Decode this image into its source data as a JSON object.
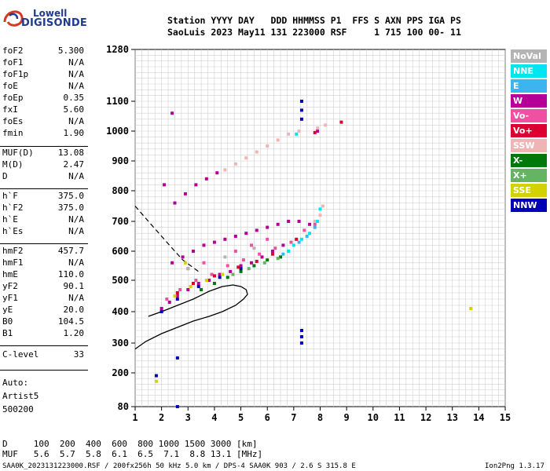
{
  "logo": {
    "line1": "Lowell",
    "line2": "DIGISONDE"
  },
  "header": {
    "line1": "Station YYYY DAY   DDD HHMMSS P1  FFS S AXN PPS IGA PS",
    "line2": "SaoLuis 2023 May11 131 223000 RSF     1 715 100 00- 11"
  },
  "params": [
    {
      "name": "foF2",
      "value": "5.300"
    },
    {
      "name": "foF1",
      "value": "N/A"
    },
    {
      "name": "foF1p",
      "value": "N/A"
    },
    {
      "name": "foE",
      "value": "N/A"
    },
    {
      "name": "foEp",
      "value": "0.35"
    },
    {
      "name": "fxI",
      "value": "5.60"
    },
    {
      "name": "foEs",
      "value": "N/A"
    },
    {
      "name": "fmin",
      "value": "1.90"
    },
    {
      "name": "MUF(D)",
      "value": "13.08"
    },
    {
      "name": "M(D)",
      "value": "2.47"
    },
    {
      "name": "D",
      "value": "N/A"
    },
    {
      "name": "h`F",
      "value": "375.0"
    },
    {
      "name": "h`F2",
      "value": "375.0"
    },
    {
      "name": "h`E",
      "value": "N/A"
    },
    {
      "name": "h`Es",
      "value": "N/A"
    },
    {
      "name": "hmF2",
      "value": "457.7"
    },
    {
      "name": "hmF1",
      "value": "N/A"
    },
    {
      "name": "hmE",
      "value": "110.0"
    },
    {
      "name": "yF2",
      "value": "90.1"
    },
    {
      "name": "yF1",
      "value": "N/A"
    },
    {
      "name": "yE",
      "value": "20.0"
    },
    {
      "name": "B0",
      "value": "104.5"
    },
    {
      "name": "B1",
      "value": "1.20"
    },
    {
      "name": "C-level",
      "value": "33"
    }
  ],
  "auto": {
    "line1": "Auto:",
    "line2": "Artist5",
    "line3": "500200"
  },
  "legend": [
    {
      "label": "NoVal",
      "color": "#b4b4b4",
      "text_color": "#ffffff"
    },
    {
      "label": "NNE",
      "color": "#00e6f0",
      "text_color": "#ffffff"
    },
    {
      "label": "E",
      "color": "#3cb4f0",
      "text_color": "#ffffff"
    },
    {
      "label": "W",
      "color": "#b40096",
      "text_color": "#ffffff"
    },
    {
      "label": "Vo-",
      "color": "#f050a0",
      "text_color": "#ffffff"
    },
    {
      "label": "Vo+",
      "color": "#dc0032",
      "text_color": "#ffffff"
    },
    {
      "label": "SSW",
      "color": "#f0b4b4",
      "text_color": "#ffffff"
    },
    {
      "label": "X-",
      "color": "#00780a",
      "text_color": "#ffffff"
    },
    {
      "label": "X+",
      "color": "#64b464",
      "text_color": "#ffffff"
    },
    {
      "label": "SSE",
      "color": "#d2d200",
      "text_color": "#ffffff"
    },
    {
      "label": "NNW",
      "color": "#0000b4",
      "text_color": "#ffffff"
    }
  ],
  "footer": {
    "d_row": "D     100  200  400  600  800 1000 1500 3000 [km]",
    "muf_row": "MUF   5.6  5.7  5.8  6.1  6.5  7.1  8.8 13.1 [MHz]",
    "file_line": "SAA0K_2023131223000.RSF / 200fx256h 50 kHz 5.0 km / DPS-4 SAA0K 903 / 2.6 S 315.8 E",
    "version": "Ion2Png 1.3.17"
  },
  "chart_data": {
    "type": "scatter",
    "xlim": [
      1,
      15
    ],
    "ylim": [
      80,
      1280
    ],
    "x_ticks": [
      1,
      2,
      3,
      4,
      5,
      6,
      7,
      8,
      9,
      10,
      11,
      12,
      13,
      14,
      15
    ],
    "y_ticks": [
      80,
      200,
      300,
      400,
      500,
      600,
      700,
      800,
      900,
      1000,
      1100,
      1280
    ],
    "grid": true,
    "legend_position": "right",
    "series": [
      {
        "name": "W",
        "color": "#b40096",
        "points": [
          [
            2.0,
            410
          ],
          [
            2.3,
            430
          ],
          [
            2.6,
            450
          ],
          [
            3.0,
            470
          ],
          [
            3.4,
            490
          ],
          [
            3.8,
            500
          ],
          [
            4.2,
            520
          ],
          [
            4.6,
            530
          ],
          [
            5.0,
            550
          ],
          [
            5.4,
            560
          ],
          [
            5.8,
            580
          ],
          [
            6.2,
            600
          ],
          [
            6.6,
            620
          ],
          [
            2.4,
            560
          ],
          [
            2.8,
            580
          ],
          [
            3.2,
            600
          ],
          [
            3.6,
            620
          ],
          [
            4.0,
            630
          ],
          [
            4.4,
            640
          ],
          [
            4.8,
            650
          ],
          [
            5.2,
            660
          ],
          [
            5.6,
            670
          ],
          [
            6.0,
            680
          ],
          [
            6.4,
            690
          ],
          [
            6.8,
            700
          ],
          [
            7.2,
            700
          ],
          [
            7.6,
            690
          ],
          [
            2.5,
            760
          ],
          [
            2.9,
            790
          ],
          [
            3.3,
            820
          ],
          [
            3.7,
            840
          ],
          [
            4.1,
            860
          ],
          [
            7.9,
            1000
          ],
          [
            2.4,
            1060
          ],
          [
            2.1,
            820
          ]
        ]
      },
      {
        "name": "Vo-",
        "color": "#f050a0",
        "points": [
          [
            2.2,
            440
          ],
          [
            2.7,
            470
          ],
          [
            3.3,
            500
          ],
          [
            3.9,
            520
          ],
          [
            4.5,
            550
          ],
          [
            5.1,
            570
          ],
          [
            5.7,
            590
          ],
          [
            6.3,
            610
          ],
          [
            6.9,
            630
          ],
          [
            7.4,
            670
          ],
          [
            7.8,
            690
          ],
          [
            3.0,
            540
          ],
          [
            3.6,
            560
          ],
          [
            4.8,
            600
          ],
          [
            5.4,
            620
          ],
          [
            6.0,
            640
          ]
        ]
      },
      {
        "name": "SSW",
        "color": "#f0b4b4",
        "points": [
          [
            4.4,
            870
          ],
          [
            4.8,
            890
          ],
          [
            5.2,
            910
          ],
          [
            5.6,
            930
          ],
          [
            6.0,
            950
          ],
          [
            6.4,
            970
          ],
          [
            6.8,
            990
          ],
          [
            7.2,
            1000
          ],
          [
            7.9,
            1010
          ],
          [
            8.2,
            1020
          ],
          [
            7.8,
            700
          ],
          [
            8.0,
            720
          ],
          [
            8.1,
            750
          ]
        ]
      },
      {
        "name": "NNE",
        "color": "#00e6f0",
        "points": [
          [
            7.0,
            620
          ],
          [
            7.3,
            640
          ],
          [
            7.6,
            660
          ],
          [
            7.9,
            700
          ],
          [
            8.0,
            740
          ],
          [
            6.8,
            600
          ],
          [
            7.1,
            990
          ]
        ]
      },
      {
        "name": "E",
        "color": "#3cb4f0",
        "points": [
          [
            7.2,
            630
          ],
          [
            7.5,
            650
          ],
          [
            7.8,
            680
          ],
          [
            6.6,
            590
          ]
        ]
      },
      {
        "name": "X-",
        "color": "#00780a",
        "points": [
          [
            4.5,
            510
          ],
          [
            5.0,
            530
          ],
          [
            5.5,
            550
          ],
          [
            6.0,
            570
          ],
          [
            6.5,
            580
          ],
          [
            4.0,
            490
          ],
          [
            3.5,
            470
          ]
        ]
      },
      {
        "name": "X+",
        "color": "#64b464",
        "points": [
          [
            4.7,
            520
          ],
          [
            5.3,
            540
          ],
          [
            5.9,
            560
          ],
          [
            6.4,
            575
          ]
        ]
      },
      {
        "name": "SSE",
        "color": "#d2d200",
        "points": [
          [
            2.5,
            450
          ],
          [
            3.1,
            480
          ],
          [
            3.7,
            500
          ],
          [
            4.3,
            520
          ],
          [
            2.9,
            560
          ],
          [
            1.8,
            170
          ],
          [
            13.7,
            410
          ]
        ]
      },
      {
        "name": "NNW",
        "color": "#0000b4",
        "points": [
          [
            1.8,
            190
          ],
          [
            2.0,
            400
          ],
          [
            2.6,
            440
          ],
          [
            3.4,
            480
          ],
          [
            4.2,
            510
          ],
          [
            5.0,
            540
          ],
          [
            7.3,
            1100
          ],
          [
            7.3,
            1070
          ],
          [
            7.3,
            1040
          ],
          [
            7.3,
            340
          ],
          [
            7.3,
            320
          ],
          [
            7.3,
            300
          ],
          [
            2.6,
            250
          ],
          [
            2.6,
            80
          ]
        ]
      },
      {
        "name": "Vo+",
        "color": "#dc0032",
        "points": [
          [
            2.6,
            460
          ],
          [
            3.2,
            490
          ],
          [
            4.0,
            515
          ],
          [
            4.9,
            545
          ],
          [
            5.6,
            565
          ],
          [
            6.2,
            590
          ],
          [
            7.1,
            640
          ],
          [
            7.8,
            995
          ],
          [
            8.8,
            1030
          ]
        ]
      },
      {
        "name": "NoVal",
        "color": "#b4b4b4",
        "points": [
          [
            3.0,
            540
          ],
          [
            4.4,
            580
          ],
          [
            5.5,
            610
          ]
        ]
      }
    ],
    "profile_line": {
      "x": [
        1.0,
        1.4,
        2.0,
        2.6,
        3.2,
        3.8,
        4.3,
        4.8,
        5.1,
        5.25,
        5.2,
        5.0,
        4.7,
        4.3,
        3.8,
        3.2,
        2.6,
        2.0,
        1.5
      ],
      "y": [
        280,
        305,
        330,
        350,
        370,
        385,
        400,
        420,
        440,
        455,
        470,
        480,
        485,
        480,
        465,
        440,
        420,
        400,
        385
      ]
    },
    "muf_curve": {
      "x": [
        1.0,
        1.3,
        1.6,
        1.9,
        2.2,
        2.5,
        2.8,
        3.1,
        3.4
      ],
      "y": [
        750,
        720,
        690,
        660,
        630,
        600,
        570,
        550,
        530
      ]
    }
  }
}
